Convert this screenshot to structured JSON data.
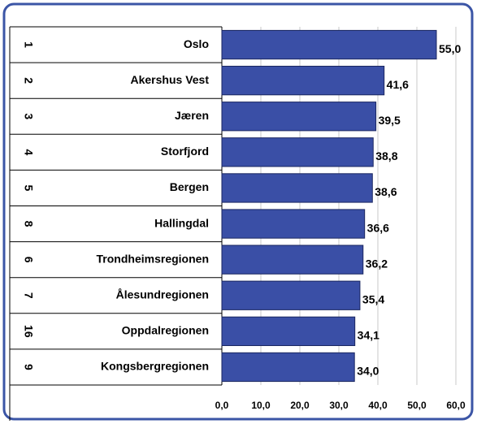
{
  "chart_data": {
    "type": "barh",
    "ranks": [
      "1",
      "2",
      "3",
      "4",
      "5",
      "8",
      "6",
      "7",
      "16",
      "9"
    ],
    "categories": [
      "Oslo",
      "Akershus Vest",
      "Jæren",
      "Storfjord",
      "Bergen",
      "Hallingdal",
      "Trondheimsregionen",
      "Ålesundregionen",
      "Oppdalregionen",
      "Kongsbergregionen"
    ],
    "values": [
      55.0,
      41.6,
      39.5,
      38.8,
      38.6,
      36.6,
      36.2,
      35.4,
      34.1,
      34.0
    ],
    "value_labels": [
      "55,0",
      "41,6",
      "39,5",
      "38,8",
      "38,6",
      "36,6",
      "36,2",
      "35,4",
      "34,1",
      "34,0"
    ],
    "color": "#3a4fa6",
    "xlim": [
      0,
      60
    ],
    "xticks": [
      {
        "value": 0,
        "label": "0,0"
      },
      {
        "value": 10,
        "label": "10,0"
      },
      {
        "value": 20,
        "label": "20,0"
      },
      {
        "value": 30,
        "label": "30,0"
      },
      {
        "value": 40,
        "label": "40,0"
      },
      {
        "value": 50,
        "label": "50,0"
      },
      {
        "value": 60,
        "label": "60,0"
      }
    ],
    "grid": true
  }
}
